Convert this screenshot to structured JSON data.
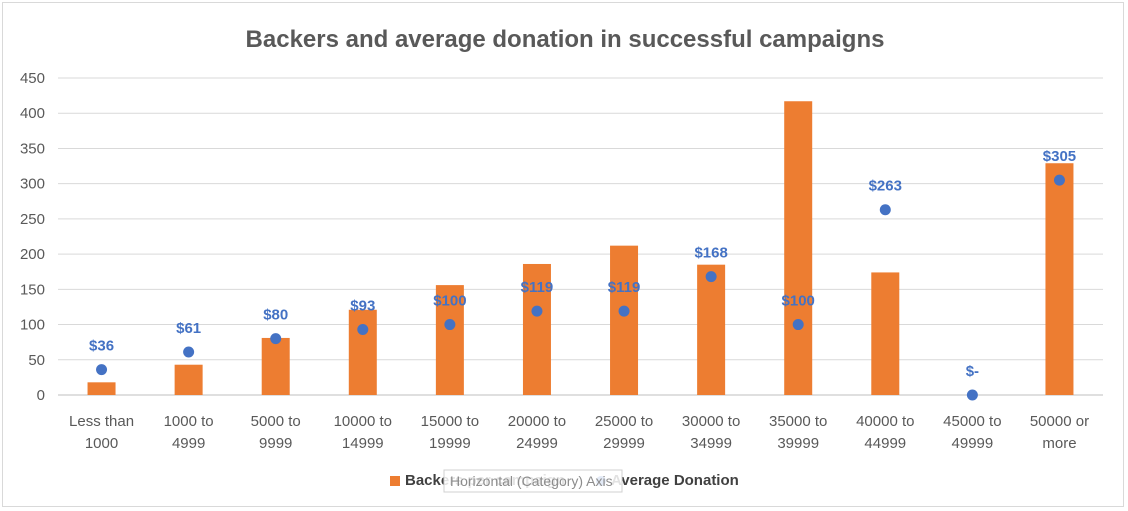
{
  "chart_data": {
    "type": "bar",
    "title": "Backers and average donation in successful campaigns",
    "xlabel": "",
    "ylabel": "",
    "ylim": [
      0,
      450
    ],
    "yticks": [
      0,
      50,
      100,
      150,
      200,
      250,
      300,
      350,
      400,
      450
    ],
    "grid": true,
    "legend_position": "bottom",
    "categories": [
      [
        "Less than",
        "1000"
      ],
      [
        "1000 to",
        "4999"
      ],
      [
        "5000 to",
        "9999"
      ],
      [
        "10000 to",
        "14999"
      ],
      [
        "15000 to",
        "19999"
      ],
      [
        "20000 to",
        "24999"
      ],
      [
        "25000 to",
        "29999"
      ],
      [
        "30000 to",
        "34999"
      ],
      [
        "35000 to",
        "39999"
      ],
      [
        "40000 to",
        "44999"
      ],
      [
        "45000 to",
        "49999"
      ],
      [
        "50000 or",
        "more"
      ]
    ],
    "series": [
      {
        "name": "Backers per campaign",
        "kind": "bar",
        "color": "#ed7d31",
        "values": [
          18,
          43,
          81,
          121,
          156,
          186,
          212,
          185,
          417,
          174,
          0,
          329
        ]
      },
      {
        "name": "Average Donation",
        "kind": "scatter",
        "color": "#4472c4",
        "values": [
          36,
          61,
          80,
          93,
          100,
          119,
          119,
          168,
          100,
          263,
          0,
          305
        ],
        "labels": [
          "$36",
          "$61",
          "$80",
          "$93",
          "$100",
          "$119",
          "$119",
          "$168",
          "$100",
          "$263",
          "$-",
          "$305"
        ]
      }
    ]
  },
  "tooltip": "Horizontal (Category) Axis"
}
